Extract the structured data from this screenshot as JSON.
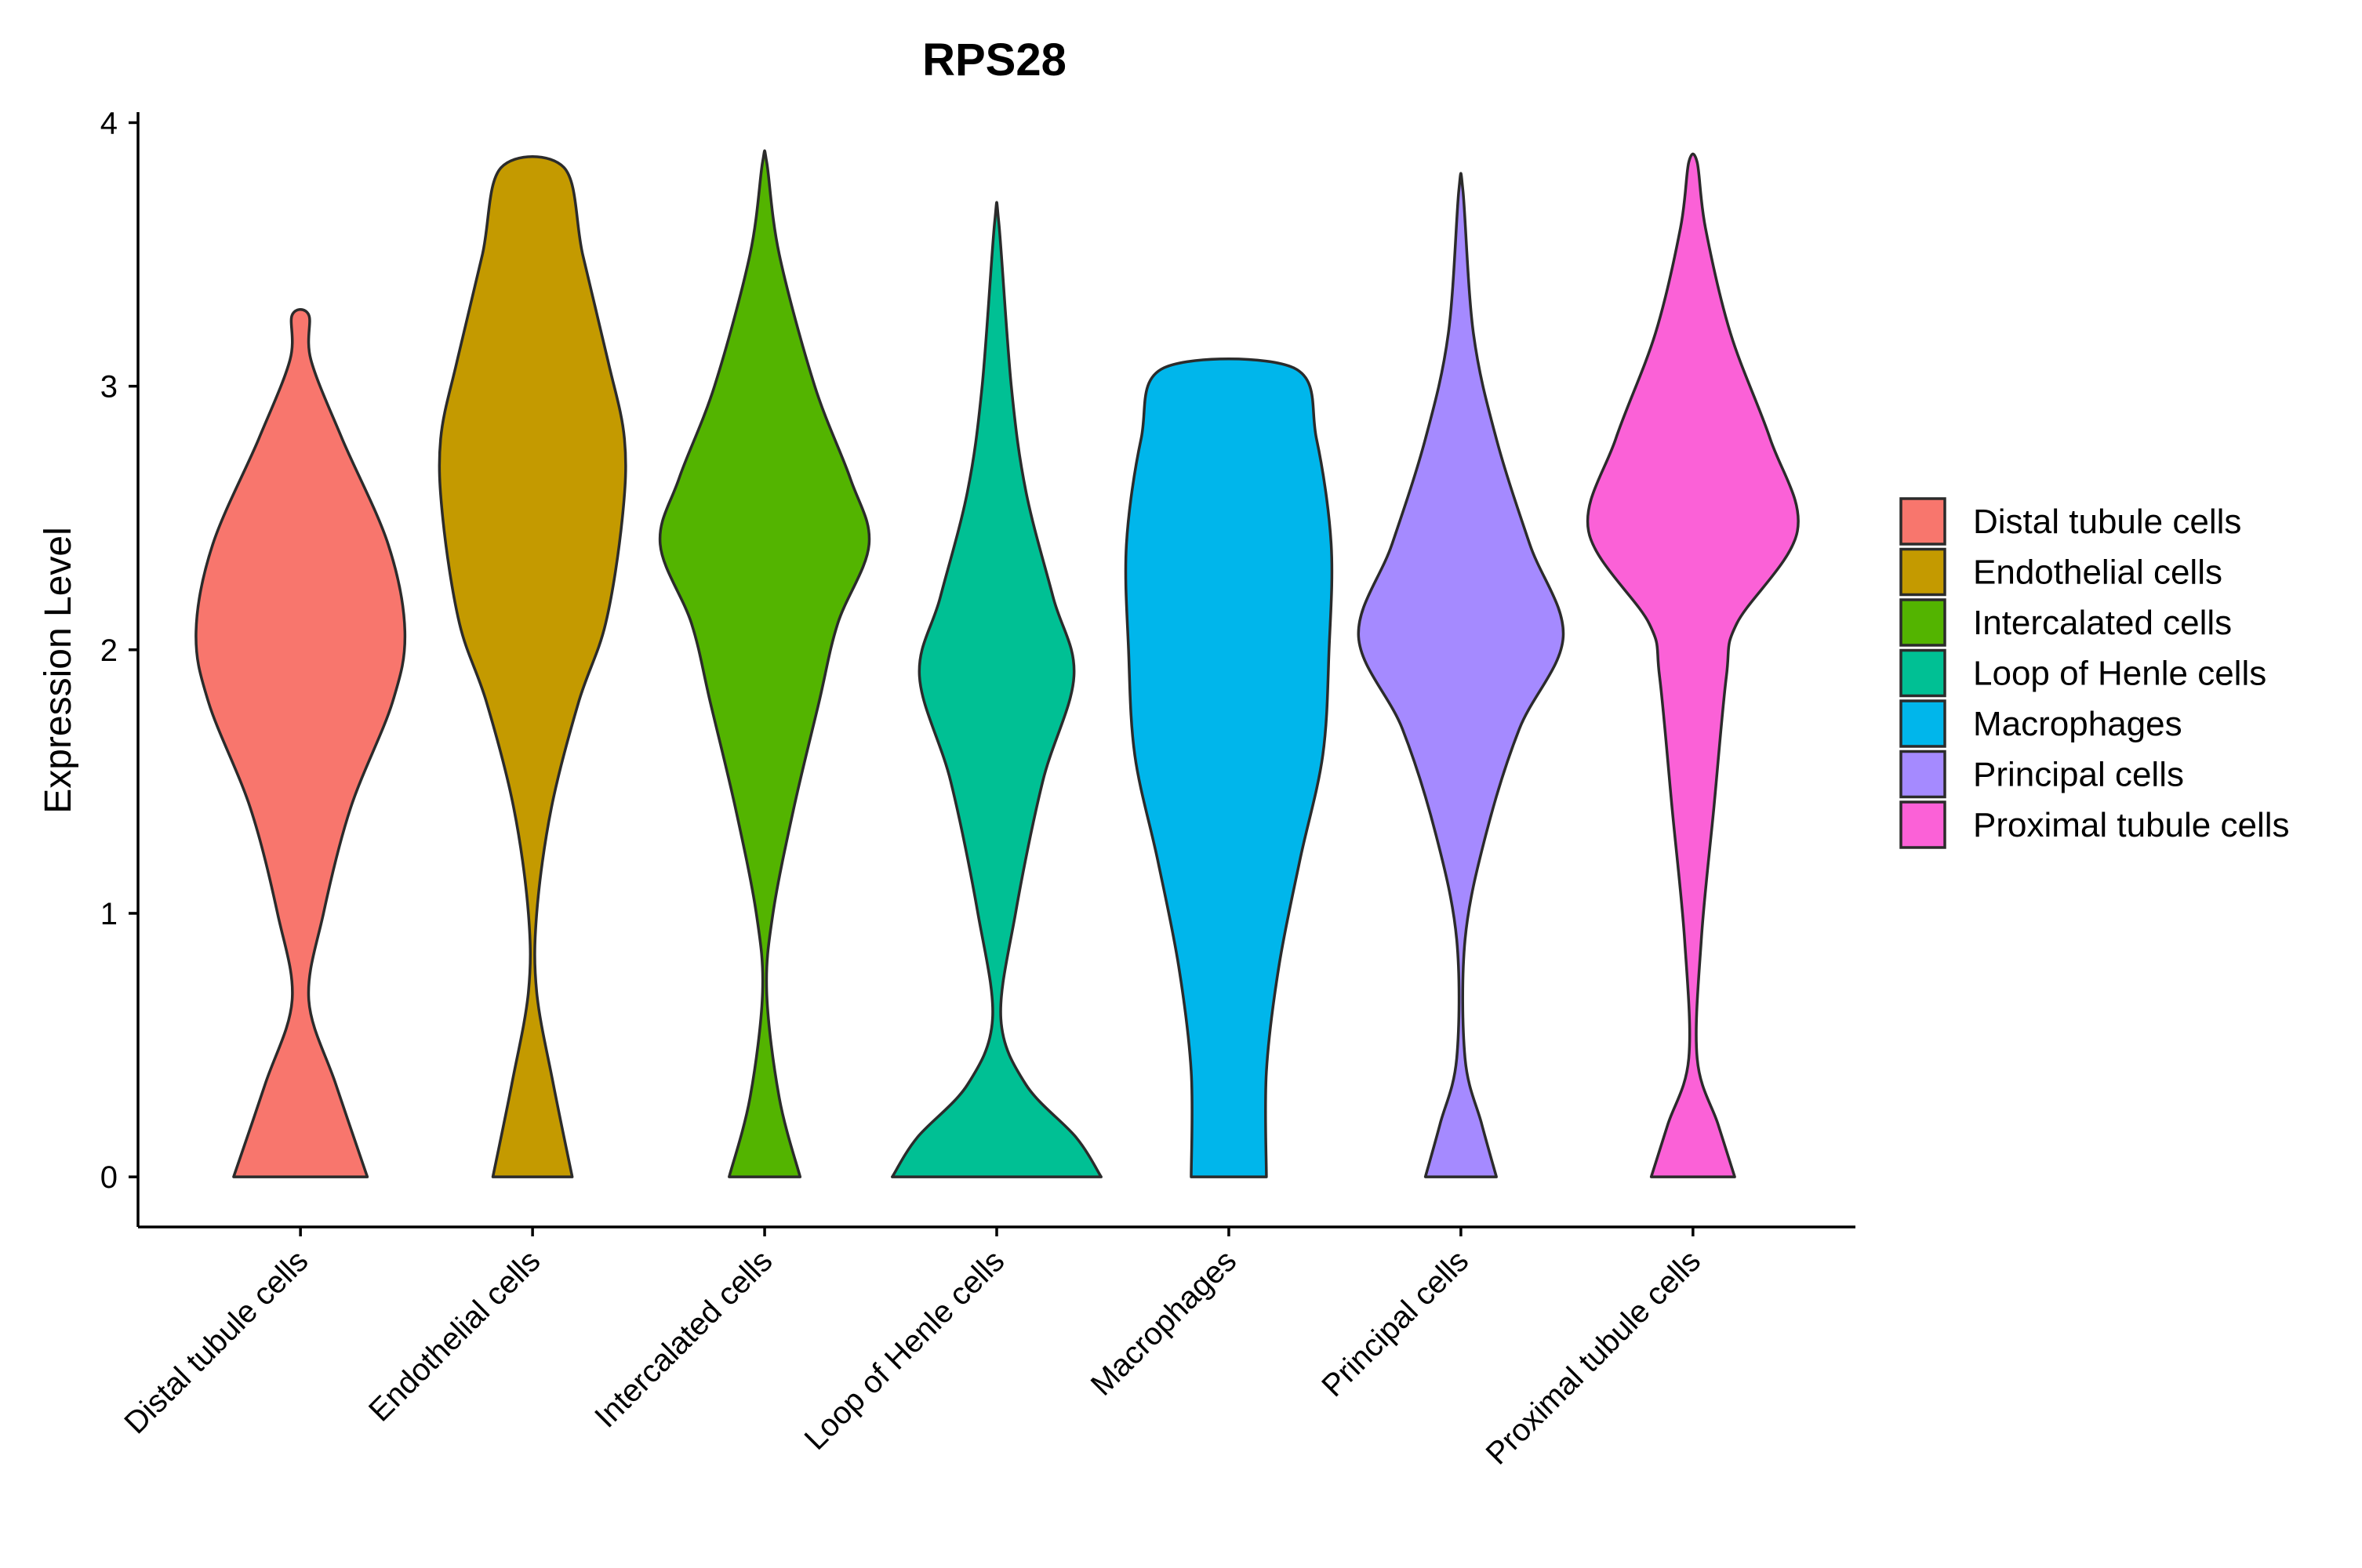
{
  "chart_data": {
    "type": "violin",
    "title": "RPS28",
    "xlabel": "",
    "ylabel": "Expression Level",
    "ylim": [
      -0.19,
      4.04
    ],
    "yticks": [
      0,
      1,
      2,
      3,
      4
    ],
    "grid": false,
    "legend_position": "right",
    "categories": [
      "Distal tubule cells",
      "Endothelial cells",
      "Intercalated cells",
      "Loop of Henle cells",
      "Macrophages",
      "Principal cells",
      "Proximal tubule cells"
    ],
    "series": [
      {
        "name": "Distal tubule cells",
        "color": "#F8766D",
        "max": 3.27,
        "density_profile": [
          [
            0,
            0.32
          ],
          [
            0.35,
            0.17
          ],
          [
            0.67,
            0.04
          ],
          [
            1.0,
            0.11
          ],
          [
            1.4,
            0.24
          ],
          [
            1.8,
            0.44
          ],
          [
            2.07,
            0.5
          ],
          [
            2.4,
            0.42
          ],
          [
            2.8,
            0.2
          ],
          [
            3.1,
            0.05
          ],
          [
            3.27,
            0.04
          ]
        ]
      },
      {
        "name": "Endothelial cells",
        "color": "#C49A00",
        "max": 3.83,
        "density_profile": [
          [
            0,
            0.19
          ],
          [
            0.35,
            0.1
          ],
          [
            0.7,
            0.02
          ],
          [
            1.0,
            0.02
          ],
          [
            1.4,
            0.09
          ],
          [
            1.8,
            0.22
          ],
          [
            2.1,
            0.35
          ],
          [
            2.5,
            0.43
          ],
          [
            2.8,
            0.44
          ],
          [
            3.1,
            0.36
          ],
          [
            3.5,
            0.24
          ],
          [
            3.83,
            0.15
          ]
        ]
      },
      {
        "name": "Intercalated cells",
        "color": "#53B400",
        "max": 3.85,
        "density_profile": [
          [
            0,
            0.17
          ],
          [
            0.3,
            0.07
          ],
          [
            0.7,
            0.01
          ],
          [
            1.0,
            0.04
          ],
          [
            1.4,
            0.14
          ],
          [
            1.8,
            0.26
          ],
          [
            2.1,
            0.35
          ],
          [
            2.4,
            0.5
          ],
          [
            2.65,
            0.41
          ],
          [
            3.0,
            0.24
          ],
          [
            3.5,
            0.07
          ],
          [
            3.85,
            0.01
          ]
        ]
      },
      {
        "name": "Loop of Henle cells",
        "color": "#00C094",
        "max": 3.62,
        "density_profile": [
          [
            0,
            0.5
          ],
          [
            0.15,
            0.38
          ],
          [
            0.35,
            0.14
          ],
          [
            0.6,
            0.02
          ],
          [
            1.0,
            0.09
          ],
          [
            1.5,
            0.22
          ],
          [
            1.9,
            0.37
          ],
          [
            2.2,
            0.27
          ],
          [
            2.6,
            0.14
          ],
          [
            3.0,
            0.07
          ],
          [
            3.62,
            0.01
          ]
        ]
      },
      {
        "name": "Macrophages",
        "color": "#00B6EB",
        "max": 3.07,
        "density_profile": [
          [
            0,
            0.18
          ],
          [
            0.4,
            0.18
          ],
          [
            0.8,
            0.24
          ],
          [
            1.2,
            0.34
          ],
          [
            1.6,
            0.45
          ],
          [
            2.0,
            0.48
          ],
          [
            2.4,
            0.49
          ],
          [
            2.8,
            0.42
          ],
          [
            3.07,
            0.31
          ]
        ]
      },
      {
        "name": "Principal cells",
        "color": "#A58AFF",
        "max": 3.74,
        "density_profile": [
          [
            0,
            0.17
          ],
          [
            0.2,
            0.1
          ],
          [
            0.45,
            0.02
          ],
          [
            0.9,
            0.02
          ],
          [
            1.3,
            0.12
          ],
          [
            1.7,
            0.28
          ],
          [
            2.05,
            0.49
          ],
          [
            2.4,
            0.33
          ],
          [
            2.8,
            0.17
          ],
          [
            3.2,
            0.06
          ],
          [
            3.74,
            0.01
          ]
        ]
      },
      {
        "name": "Proximal tubule cells",
        "color": "#FB61D7",
        "max": 3.85,
        "density_profile": [
          [
            0,
            0.2
          ],
          [
            0.2,
            0.12
          ],
          [
            0.45,
            0.02
          ],
          [
            0.9,
            0.04
          ],
          [
            1.4,
            0.1
          ],
          [
            1.9,
            0.16
          ],
          [
            2.1,
            0.21
          ],
          [
            2.45,
            0.5
          ],
          [
            2.8,
            0.37
          ],
          [
            3.2,
            0.18
          ],
          [
            3.6,
            0.06
          ],
          [
            3.85,
            0.02
          ]
        ]
      }
    ]
  }
}
